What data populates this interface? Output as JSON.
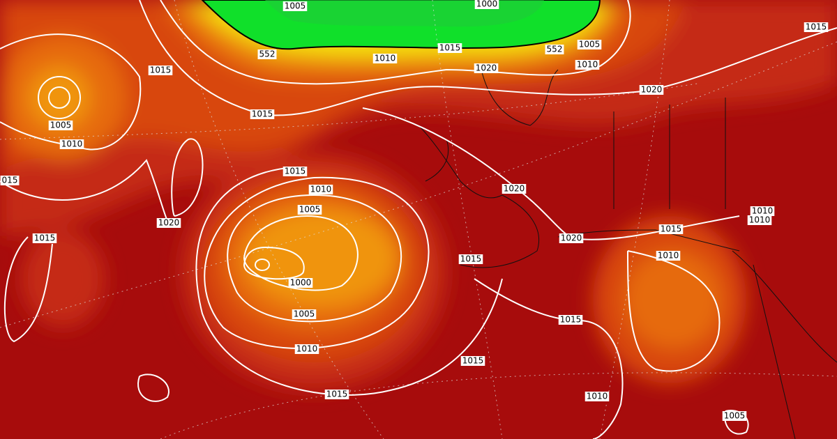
{
  "contour_labels": [
    "1005",
    "1000",
    "552",
    "1010",
    "1015",
    "552",
    "1005",
    "1010",
    "1020",
    "1015",
    "1015",
    "1015",
    "1005",
    "1010",
    "1020",
    "015",
    "1015",
    "1010",
    "1005",
    "1020",
    "1020",
    "1015",
    "1015",
    "1010",
    "1010",
    "1020",
    "1010",
    "1015",
    "1000",
    "1005",
    "1015",
    "1010",
    "1015",
    "1015",
    "1010",
    "1005"
  ]
}
